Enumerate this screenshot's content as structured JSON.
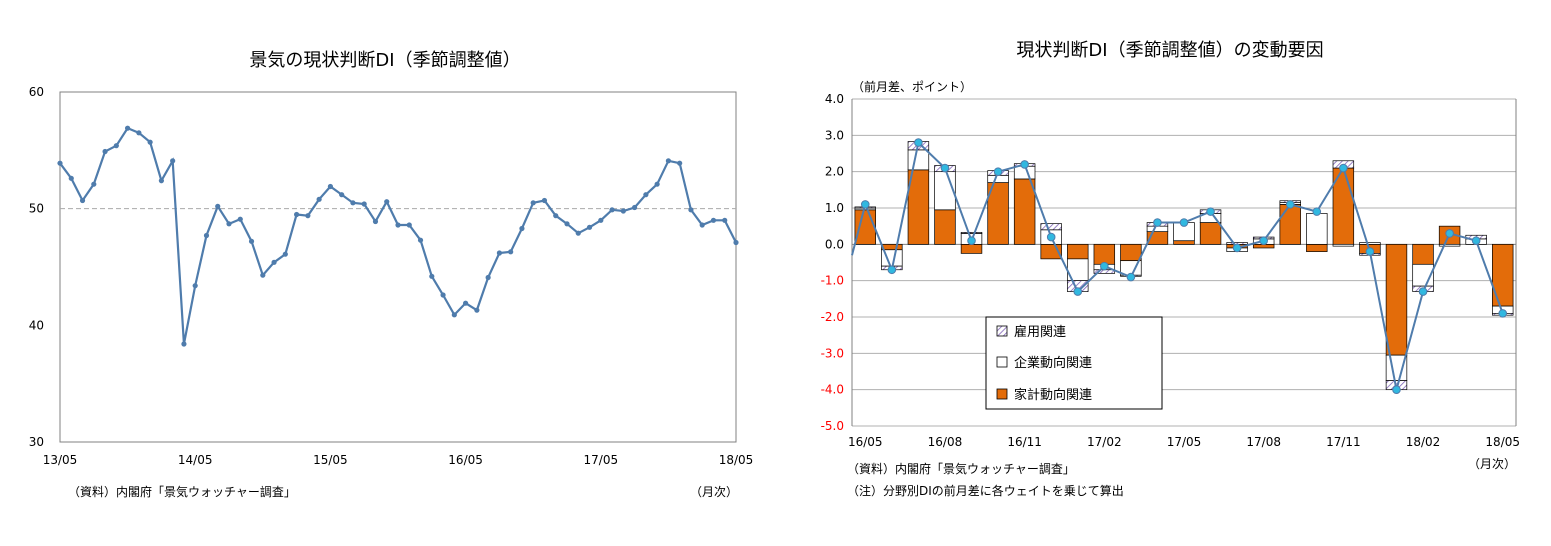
{
  "chart_data": [
    {
      "type": "line",
      "title": "景気の現状判断DI（季節調整値）",
      "xlabel": "",
      "ylabel": "",
      "ylim": [
        30,
        60
      ],
      "yticks": [
        "30",
        "40",
        "50",
        "60"
      ],
      "xticks": [
        "13/05",
        "14/05",
        "15/05",
        "16/05",
        "17/05",
        "18/05"
      ],
      "reference_line": 50,
      "grid": false,
      "source_note": "（資料）内閣府「景気ウォッチャー調査」",
      "unit_note": "（月次）",
      "colors": {
        "line": "#4f7cac",
        "reference": "#aaaaaa"
      },
      "series": [
        {
          "x": [
            "13/05",
            "13/06",
            "13/07",
            "13/08",
            "13/09",
            "13/10",
            "13/11",
            "13/12",
            "14/01",
            "14/02",
            "14/03",
            "14/04",
            "14/05",
            "14/06",
            "14/07",
            "14/08",
            "14/09",
            "14/10",
            "14/11",
            "14/12",
            "15/01",
            "15/02",
            "15/03",
            "15/04",
            "15/05",
            "15/06",
            "15/07",
            "15/08",
            "15/09",
            "15/10",
            "15/11",
            "15/12",
            "16/01",
            "16/02",
            "16/03",
            "16/04",
            "16/05",
            "16/06",
            "16/07",
            "16/08",
            "16/09",
            "16/10",
            "16/11",
            "16/12",
            "17/01",
            "17/02",
            "17/03",
            "17/04",
            "17/05",
            "17/06",
            "17/07",
            "17/08",
            "17/09",
            "17/10",
            "17/11",
            "17/12",
            "18/01",
            "18/02",
            "18/03",
            "18/04",
            "18/05"
          ],
          "values": [
            53.9,
            52.6,
            50.7,
            52.1,
            54.9,
            55.4,
            56.9,
            56.5,
            55.7,
            52.4,
            54.1,
            38.4,
            43.4,
            47.7,
            50.2,
            48.7,
            49.1,
            47.2,
            44.3,
            45.4,
            46.1,
            49.5,
            49.4,
            50.8,
            51.9,
            51.2,
            50.5,
            50.4,
            48.9,
            50.6,
            48.6,
            48.6,
            47.3,
            44.2,
            42.6,
            40.9,
            41.9,
            41.3,
            44.1,
            46.2,
            46.3,
            48.3,
            50.5,
            50.7,
            49.4,
            48.7,
            47.9,
            48.4,
            49.0,
            49.9,
            49.8,
            50.1,
            51.2,
            52.1,
            54.1,
            53.9,
            49.9,
            48.6,
            49.0,
            49.0,
            47.1
          ]
        }
      ]
    },
    {
      "type": "bar",
      "stacked": true,
      "title": "現状判断DI（季節調整値）の変動要因",
      "unit_label": "（前月差、ポイント）",
      "ylim": [
        -5,
        4
      ],
      "yticks": [
        "4.0",
        "3.0",
        "2.0",
        "1.0",
        "0.0",
        "-1.0",
        "-2.0",
        "-3.0",
        "-4.0",
        "-5.0"
      ],
      "xticks": [
        "16/05",
        "16/08",
        "16/11",
        "17/02",
        "17/05",
        "17/08",
        "17/11",
        "18/02",
        "18/05"
      ],
      "grid": true,
      "unit_note": "（月次）",
      "source_note": "（資料）内閣府「景気ウォッチャー調査」",
      "footnote": "（注）分野別DIの前月差に各ウェイトを乗じて算出",
      "legend": {
        "position": "lower-left",
        "items": [
          "雇用関連",
          "企業動向関連",
          "家計動向関連"
        ]
      },
      "colors": {
        "household": "#e36c0a",
        "corporate": "#ffffff",
        "employment_stripe": "#7f63b8",
        "line": "#4f7cac",
        "marker": "#31b8e0"
      },
      "categories": [
        "16/05",
        "16/06",
        "16/07",
        "16/08",
        "16/09",
        "16/10",
        "16/11",
        "16/12",
        "17/01",
        "17/02",
        "17/03",
        "17/04",
        "17/05",
        "17/06",
        "17/07",
        "17/08",
        "17/09",
        "17/10",
        "17/11",
        "17/12",
        "18/01",
        "18/02",
        "18/03",
        "18/04",
        "18/05"
      ],
      "series": [
        {
          "name": "家計動向関連",
          "values": [
            0.95,
            -0.15,
            2.05,
            0.95,
            -0.25,
            1.7,
            1.8,
            -0.4,
            -0.4,
            -0.55,
            -0.45,
            0.35,
            0.1,
            0.6,
            -0.1,
            -0.1,
            1.1,
            -0.2,
            2.1,
            -0.25,
            -3.05,
            -0.55,
            0.5,
            0.0,
            -1.7
          ]
        },
        {
          "name": "企業動向関連",
          "values": [
            0.05,
            -0.45,
            0.55,
            1.05,
            0.3,
            0.2,
            0.35,
            0.4,
            -0.6,
            -0.15,
            -0.4,
            0.15,
            0.5,
            0.25,
            -0.1,
            0.15,
            0.05,
            0.85,
            -0.05,
            0.05,
            -0.7,
            -0.6,
            -0.05,
            0.15,
            -0.2
          ]
        },
        {
          "name": "雇用関連",
          "values": [
            0.03,
            -0.1,
            0.23,
            0.17,
            0.03,
            0.13,
            0.07,
            0.17,
            -0.3,
            -0.1,
            -0.03,
            0.1,
            0.0,
            0.1,
            0.05,
            0.05,
            0.05,
            0.0,
            0.2,
            -0.05,
            -0.25,
            -0.15,
            0.0,
            0.1,
            -0.05
          ]
        },
        {
          "name": "total",
          "values": [
            1.1,
            -0.7,
            2.8,
            2.1,
            0.1,
            2.0,
            2.2,
            0.2,
            -1.3,
            -0.6,
            -0.9,
            0.6,
            0.6,
            0.9,
            -0.1,
            0.1,
            1.1,
            0.9,
            2.1,
            -0.2,
            -4.0,
            -1.3,
            0.3,
            0.1,
            -1.9
          ]
        }
      ]
    }
  ]
}
